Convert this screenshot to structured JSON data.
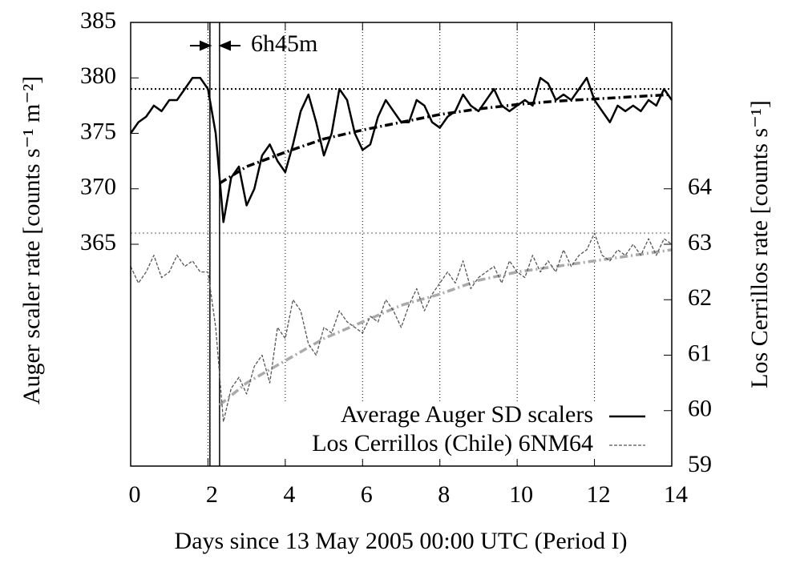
{
  "chart_data": {
    "type": "line",
    "xlabel": "Days since 13 May 2005 00:00 UTC (Period I)",
    "ylabel": "Auger scaler rate [counts s⁻¹ m⁻²]",
    "y2label": "Los Cerrillos rate [counts s⁻¹]",
    "annotation": "6h45m",
    "xlim": [
      0,
      14
    ],
    "xticks": [
      0,
      2,
      4,
      6,
      8,
      10,
      12,
      14
    ],
    "ylim": [
      345,
      385
    ],
    "yticks": [
      365,
      370,
      375,
      380,
      385
    ],
    "y2lim": [
      59,
      67
    ],
    "y2ticks": [
      59,
      60,
      61,
      62,
      63,
      64
    ],
    "grid": true,
    "legend": "lower-right",
    "x": [
      0,
      0.2,
      0.4,
      0.6,
      0.8,
      1,
      1.2,
      1.4,
      1.6,
      1.8,
      2,
      2.2,
      2.4,
      2.6,
      2.8,
      3,
      3.2,
      3.4,
      3.6,
      3.8,
      4,
      4.2,
      4.4,
      4.6,
      4.8,
      5,
      5.2,
      5.4,
      5.6,
      5.8,
      6,
      6.2,
      6.4,
      6.6,
      6.8,
      7,
      7.2,
      7.4,
      7.6,
      7.8,
      8,
      8.2,
      8.4,
      8.6,
      8.8,
      9,
      9.2,
      9.4,
      9.6,
      9.8,
      10,
      10.2,
      10.4,
      10.6,
      10.8,
      11,
      11.2,
      11.4,
      11.6,
      11.8,
      12,
      12.2,
      12.4,
      12.6,
      12.8,
      13,
      13.2,
      13.4,
      13.6,
      13.8,
      14
    ],
    "series": [
      {
        "name": "Average Auger SD scalers",
        "color": "#000000",
        "linestyle": "solid",
        "axis": "y",
        "values": [
          375,
          376,
          376.5,
          377.5,
          377,
          378,
          378,
          379,
          380,
          380,
          379,
          375,
          367,
          371,
          372,
          368.5,
          370,
          373,
          374,
          372.5,
          371.5,
          374,
          377,
          378.5,
          376,
          373,
          375,
          379,
          378,
          375,
          373.5,
          374,
          376.5,
          378,
          377,
          376,
          376,
          378,
          377.5,
          376,
          375.5,
          376.5,
          377,
          378.5,
          377.5,
          377,
          378,
          379,
          377.5,
          377,
          377.5,
          378,
          377.5,
          380,
          379.5,
          378,
          378.5,
          378,
          379,
          380,
          378,
          377,
          376,
          377.5,
          377,
          377.5,
          377,
          378,
          377.5,
          379,
          378
        ]
      },
      {
        "name": "Los Cerrillos (Chile) 6NM64",
        "color": "#555555",
        "linestyle": "dashed",
        "axis": "y2",
        "values": [
          62.6,
          62.3,
          62.5,
          62.8,
          62.4,
          62.5,
          62.8,
          62.6,
          62.7,
          62.5,
          62.5,
          61.5,
          59.8,
          60.4,
          60.6,
          60.3,
          60.8,
          61.0,
          60.5,
          61.5,
          61.3,
          62.0,
          61.8,
          61.2,
          61.0,
          61.5,
          61.4,
          61.8,
          61.6,
          61.5,
          61.4,
          61.7,
          61.6,
          62.0,
          61.8,
          61.5,
          61.9,
          62.2,
          61.8,
          62.1,
          62.3,
          62.5,
          62.3,
          62.7,
          62.2,
          62.4,
          62.5,
          62.6,
          62.3,
          62.7,
          62.5,
          62.4,
          62.8,
          62.5,
          62.7,
          62.5,
          62.9,
          62.6,
          62.8,
          62.9,
          63.2,
          62.8,
          62.7,
          62.9,
          62.8,
          63.0,
          62.8,
          63.1,
          62.8,
          63.1,
          63.0
        ]
      }
    ],
    "fits": [
      {
        "color": "#000000",
        "axis": "y",
        "x": [
          2.3,
          3,
          4,
          5,
          6,
          7,
          8,
          9,
          10,
          11,
          12,
          13,
          14
        ],
        "values": [
          370.5,
          372,
          373.3,
          374.5,
          375.3,
          376,
          376.7,
          377.2,
          377.6,
          377.9,
          378.1,
          378.3,
          378.5
        ]
      },
      {
        "color": "#aaaaaa",
        "axis": "y2",
        "x": [
          2.3,
          3,
          4,
          5,
          6,
          7,
          8,
          9,
          10,
          11,
          12,
          13,
          14
        ],
        "values": [
          60.1,
          60.5,
          60.9,
          61.3,
          61.6,
          61.9,
          62.1,
          62.35,
          62.5,
          62.6,
          62.7,
          62.8,
          62.9
        ]
      }
    ],
    "hlines": [
      {
        "value": 379,
        "axis": "y",
        "color": "#000000"
      },
      {
        "value": 63.2,
        "axis": "y2",
        "color": "#aaaaaa"
      }
    ],
    "vlines": [
      2.05,
      2.3
    ]
  }
}
